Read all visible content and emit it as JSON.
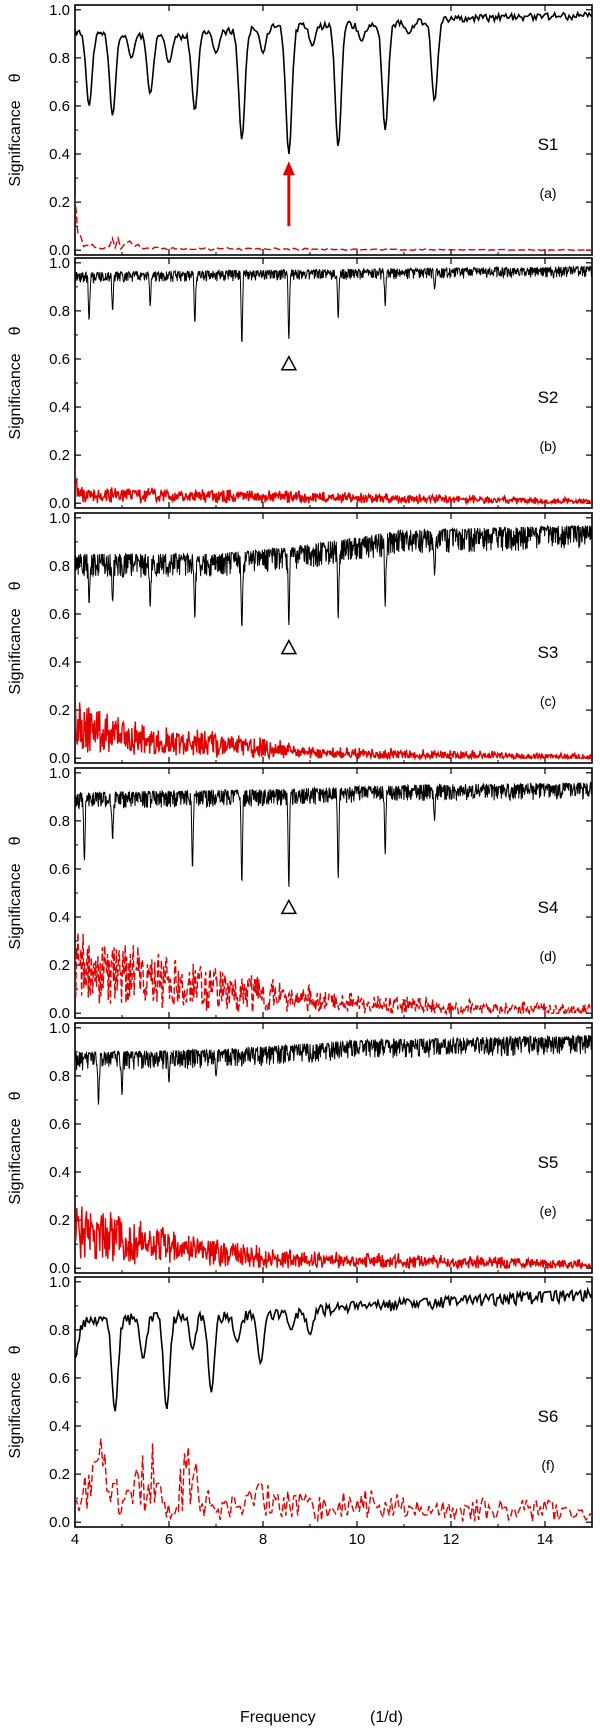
{
  "chart_data": {
    "type": "line",
    "figure": {
      "xlabel": "Frequency",
      "xunit": "(1/d)",
      "ylabel": "Significance",
      "ylabel_symbol": "θ",
      "xlim": [
        4,
        15
      ],
      "ylim": [
        -0.02,
        1.02
      ],
      "x_ticks": [
        4,
        6,
        8,
        10,
        12,
        14
      ],
      "y_ticks": [
        0.0,
        0.2,
        0.4,
        0.6,
        0.8,
        1.0
      ],
      "y_tick_labels": [
        "0.0",
        "0.2",
        "0.4",
        "0.6",
        "0.8",
        "1.0"
      ]
    },
    "colors": {
      "theta": "#000000",
      "significance": "#e00000"
    },
    "panels": [
      {
        "label": "S1",
        "sublabel": "(a)",
        "theta_baseline": [
          [
            4.0,
            0.92
          ],
          [
            6.0,
            0.9
          ],
          [
            8.0,
            0.94
          ],
          [
            11.0,
            0.96
          ],
          [
            12.5,
            0.98
          ],
          [
            15.0,
            0.99
          ]
        ],
        "theta_noise": 0.03,
        "theta_density": 360,
        "theta_dips": [
          [
            4.3,
            0.6
          ],
          [
            4.8,
            0.56
          ],
          [
            5.6,
            0.65
          ],
          [
            6.55,
            0.58
          ],
          [
            7.55,
            0.46
          ],
          [
            8.55,
            0.4
          ],
          [
            9.6,
            0.43
          ],
          [
            10.6,
            0.5
          ],
          [
            11.65,
            0.62
          ],
          [
            5.2,
            0.8
          ],
          [
            6.0,
            0.78
          ],
          [
            7.0,
            0.82
          ],
          [
            8.0,
            0.82
          ],
          [
            9.05,
            0.85
          ],
          [
            10.1,
            0.87
          ],
          [
            11.1,
            0.9
          ]
        ],
        "theta_dip_width": 0.09,
        "sig_points": [
          [
            4.0,
            0.27
          ],
          [
            4.05,
            0.14
          ],
          [
            4.15,
            0.02
          ],
          [
            4.35,
            0.03
          ],
          [
            4.6,
            0.01
          ],
          [
            4.9,
            0.06
          ],
          [
            5.05,
            0.02
          ],
          [
            5.2,
            0.09
          ],
          [
            5.4,
            0.01
          ],
          [
            15.0,
            0.0
          ]
        ],
        "sig_level": 0.01,
        "sig_noise": 0.008,
        "sig_dashed": true,
        "sig_density": 180,
        "marker": {
          "type": "arrow",
          "x": 8.55,
          "y_from": 0.1,
          "y_to": 0.37
        }
      },
      {
        "label": "S2",
        "sublabel": "(b)",
        "theta_baseline": [
          [
            4.0,
            0.96
          ],
          [
            8.0,
            0.97
          ],
          [
            15.0,
            0.985
          ]
        ],
        "theta_noise": 0.045,
        "theta_density": 1300,
        "theta_dips": [
          [
            4.3,
            0.76
          ],
          [
            4.8,
            0.8
          ],
          [
            5.6,
            0.82
          ],
          [
            6.55,
            0.75
          ],
          [
            7.55,
            0.66
          ],
          [
            8.55,
            0.68
          ],
          [
            9.6,
            0.77
          ],
          [
            10.6,
            0.82
          ],
          [
            11.65,
            0.89
          ]
        ],
        "theta_dip_width": 0.02,
        "sig_points": [
          [
            4.0,
            0.16
          ],
          [
            4.05,
            0.05
          ],
          [
            8.0,
            0.04
          ],
          [
            15.0,
            0.01
          ]
        ],
        "sig_level": 0.03,
        "sig_noise": 0.04,
        "sig_dashed": false,
        "sig_density": 900,
        "marker": {
          "type": "triangle",
          "x": 8.55,
          "y": 0.58
        }
      },
      {
        "label": "S3",
        "sublabel": "(c)",
        "theta_baseline": [
          [
            4.0,
            0.85
          ],
          [
            7.0,
            0.85
          ],
          [
            9.0,
            0.89
          ],
          [
            11.0,
            0.95
          ],
          [
            15.0,
            0.97
          ]
        ],
        "theta_noise": 0.1,
        "theta_density": 1300,
        "theta_dips": [
          [
            4.3,
            0.64
          ],
          [
            4.8,
            0.65
          ],
          [
            5.6,
            0.63
          ],
          [
            6.55,
            0.58
          ],
          [
            7.55,
            0.54
          ],
          [
            8.55,
            0.55
          ],
          [
            9.6,
            0.58
          ],
          [
            10.6,
            0.63
          ],
          [
            11.65,
            0.76
          ]
        ],
        "theta_dip_width": 0.02,
        "sig_points": [
          [
            4.0,
            0.2
          ],
          [
            5.5,
            0.1
          ],
          [
            7.5,
            0.08
          ],
          [
            9.0,
            0.03
          ],
          [
            15.0,
            0.005
          ]
        ],
        "sig_level": 0.05,
        "sig_noise": 0.06,
        "sig_dashed": false,
        "sig_density": 900,
        "marker": {
          "type": "triangle",
          "x": 8.55,
          "y": 0.46
        }
      },
      {
        "label": "S4",
        "sublabel": "(d)",
        "theta_baseline": [
          [
            4.0,
            0.92
          ],
          [
            8.0,
            0.93
          ],
          [
            11.0,
            0.95
          ],
          [
            15.0,
            0.96
          ]
        ],
        "theta_noise": 0.07,
        "theta_density": 1300,
        "theta_dips": [
          [
            4.2,
            0.63
          ],
          [
            4.8,
            0.72
          ],
          [
            6.5,
            0.6
          ],
          [
            7.55,
            0.54
          ],
          [
            8.55,
            0.52
          ],
          [
            9.6,
            0.56
          ],
          [
            10.6,
            0.66
          ],
          [
            11.65,
            0.8
          ]
        ],
        "theta_dip_width": 0.02,
        "sig_points": [
          [
            4.0,
            0.27
          ],
          [
            7.5,
            0.12
          ],
          [
            10.0,
            0.06
          ],
          [
            12.0,
            0.03
          ],
          [
            15.0,
            0.02
          ]
        ],
        "sig_level": 0.05,
        "sig_noise": 0.09,
        "sig_dashed": true,
        "sig_density": 700,
        "marker": {
          "type": "triangle",
          "x": 8.55,
          "y": 0.44
        }
      },
      {
        "label": "S5",
        "sublabel": "(e)",
        "theta_baseline": [
          [
            4.0,
            0.9
          ],
          [
            7.0,
            0.91
          ],
          [
            10.0,
            0.95
          ],
          [
            15.0,
            0.97
          ]
        ],
        "theta_noise": 0.08,
        "theta_density": 1300,
        "theta_dips": [
          [
            4.5,
            0.68
          ],
          [
            5.0,
            0.72
          ],
          [
            6.0,
            0.77
          ],
          [
            7.0,
            0.8
          ],
          [
            8.55,
            0.86
          ]
        ],
        "theta_dip_width": 0.02,
        "sig_points": [
          [
            4.0,
            0.22
          ],
          [
            6.0,
            0.12
          ],
          [
            8.5,
            0.05
          ],
          [
            15.0,
            0.02
          ]
        ],
        "sig_level": 0.04,
        "sig_noise": 0.06,
        "sig_dashed": false,
        "sig_density": 900,
        "marker": null
      },
      {
        "label": "S6",
        "sublabel": "(f)",
        "theta_baseline": [
          [
            4.0,
            0.85
          ],
          [
            6.0,
            0.88
          ],
          [
            8.0,
            0.88
          ],
          [
            10.0,
            0.92
          ],
          [
            12.0,
            0.94
          ],
          [
            15.0,
            0.97
          ]
        ],
        "theta_noise": 0.05,
        "theta_density": 360,
        "theta_dips": [
          [
            4.0,
            0.68
          ],
          [
            4.85,
            0.46
          ],
          [
            5.95,
            0.47
          ],
          [
            6.9,
            0.54
          ],
          [
            7.95,
            0.66
          ],
          [
            9.0,
            0.78
          ],
          [
            5.45,
            0.68
          ],
          [
            6.5,
            0.72
          ],
          [
            7.45,
            0.75
          ],
          [
            8.6,
            0.8
          ]
        ],
        "theta_dip_width": 0.09,
        "sig_points": [
          [
            4.0,
            0.12
          ],
          [
            4.3,
            0.22
          ],
          [
            4.45,
            0.38
          ],
          [
            5.0,
            0.1
          ],
          [
            5.5,
            0.35
          ],
          [
            6.0,
            0.05
          ],
          [
            6.45,
            0.3
          ],
          [
            7.0,
            0.05
          ],
          [
            7.5,
            0.16
          ],
          [
            9.0,
            0.1
          ],
          [
            10.0,
            0.12
          ],
          [
            12.0,
            0.07
          ],
          [
            14.0,
            0.08
          ],
          [
            15.0,
            0.03
          ]
        ],
        "sig_level": 0.05,
        "sig_noise": 0.05,
        "sig_dashed": true,
        "sig_density": 260,
        "marker": null
      }
    ]
  }
}
